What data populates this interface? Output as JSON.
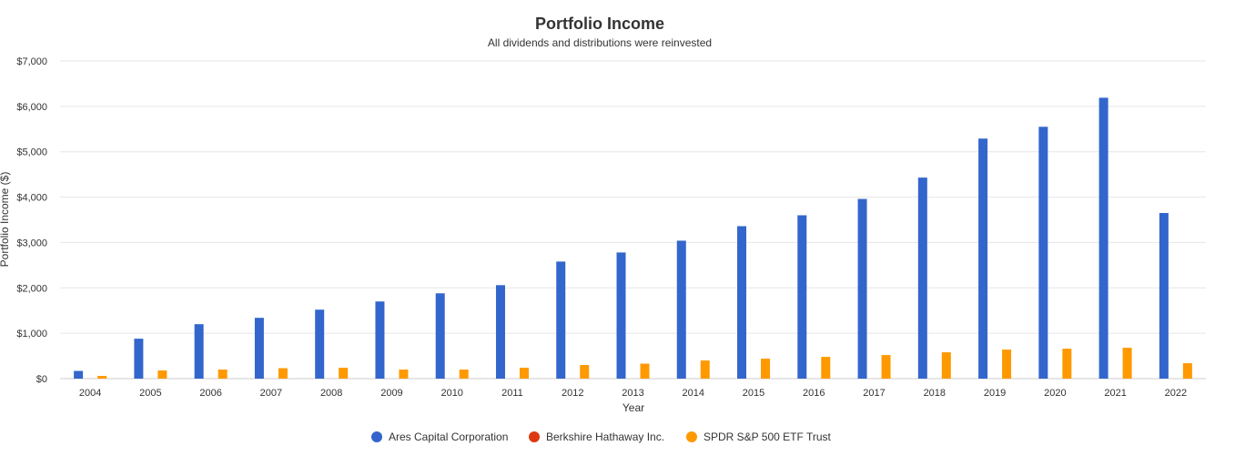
{
  "chart_data": {
    "type": "bar",
    "title": "Portfolio Income",
    "subtitle": "All dividends and distributions were reinvested",
    "xlabel": "Year",
    "ylabel": "Portfolio Income ($)",
    "ylim": [
      0,
      7000
    ],
    "yticks": [
      0,
      1000,
      2000,
      3000,
      4000,
      5000,
      6000,
      7000
    ],
    "ytick_labels": [
      "$0",
      "$1,000",
      "$2,000",
      "$3,000",
      "$4,000",
      "$5,000",
      "$6,000",
      "$7,000"
    ],
    "grid": true,
    "legend_position": "bottom-center",
    "categories": [
      "2004",
      "2005",
      "2006",
      "2007",
      "2008",
      "2009",
      "2010",
      "2011",
      "2012",
      "2013",
      "2014",
      "2015",
      "2016",
      "2017",
      "2018",
      "2019",
      "2020",
      "2021",
      "2022"
    ],
    "series": [
      {
        "name": "Ares Capital Corporation",
        "color": "#3366cc",
        "values": [
          170,
          880,
          1200,
          1340,
          1520,
          1700,
          1880,
          2060,
          2580,
          2780,
          3040,
          3360,
          3600,
          3960,
          4430,
          5290,
          5550,
          6190,
          3650
        ]
      },
      {
        "name": "Berkshire Hathaway Inc.",
        "color": "#dc3912",
        "values": [
          0,
          0,
          0,
          0,
          0,
          0,
          0,
          0,
          0,
          0,
          0,
          0,
          0,
          0,
          0,
          0,
          0,
          0,
          0
        ]
      },
      {
        "name": "SPDR S&P 500 ETF Trust",
        "color": "#ff9900",
        "values": [
          60,
          180,
          200,
          230,
          240,
          200,
          200,
          240,
          300,
          330,
          400,
          440,
          480,
          520,
          580,
          640,
          660,
          680,
          340
        ]
      }
    ]
  }
}
